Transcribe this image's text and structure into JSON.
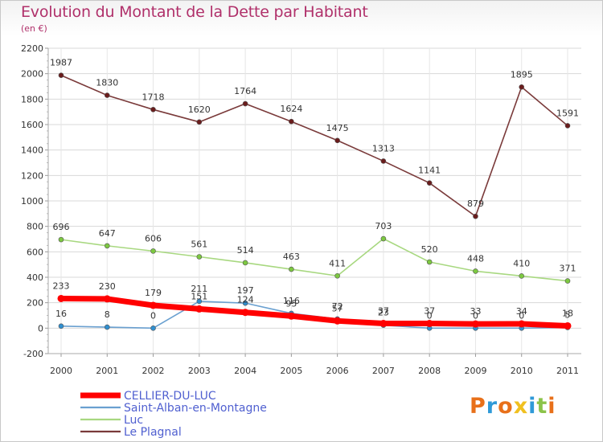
{
  "header": {
    "title": "Evolution du Montant de la Dette par Habitant",
    "subtitle": "(en €)"
  },
  "logo": {
    "text": "Proxiti",
    "colors": [
      "#e8701a",
      "#2f9ad8",
      "#e8701a",
      "#f0c020",
      "#2f9ad8",
      "#8bc34a",
      "#e8701a"
    ]
  },
  "chart_data": {
    "type": "line",
    "x": [
      "2000",
      "2001",
      "2002",
      "2003",
      "2004",
      "2005",
      "2006",
      "2007",
      "2008",
      "2009",
      "2010",
      "2011"
    ],
    "ylim": [
      -200,
      2200
    ],
    "yticks": [
      "-200",
      "0",
      "200",
      "400",
      "600",
      "800",
      "1000",
      "1200",
      "1400",
      "1600",
      "1800",
      "2000",
      "2200"
    ],
    "legend_position": "bottom-left",
    "series": [
      {
        "name": "CELLIER-DU-LUC",
        "color": "#ff0000",
        "marker": "#ff0000",
        "values": [
          233,
          230,
          179,
          151,
          124,
          95,
          57,
          37,
          37,
          33,
          34,
          18
        ],
        "labels": [
          "233",
          "230",
          "179",
          "151",
          "124",
          "95",
          "57",
          "37",
          "37",
          "33",
          "34",
          "18"
        ]
      },
      {
        "name": "Saint-Alban-en-Montagne",
        "color": "#6aa0d0",
        "marker": "#2f8fd0",
        "values": [
          16,
          8,
          0,
          211,
          197,
          116,
          72,
          23,
          0,
          0,
          0,
          5
        ],
        "labels": [
          "16",
          "8",
          "0",
          "211",
          "197",
          "116",
          "72",
          "23",
          "0",
          "0",
          "0",
          "5"
        ]
      },
      {
        "name": "Luc",
        "color": "#a8d880",
        "marker": "#7cc840",
        "values": [
          696,
          647,
          606,
          561,
          514,
          463,
          411,
          703,
          520,
          448,
          410,
          371
        ],
        "labels": [
          "696",
          "647",
          "606",
          "561",
          "514",
          "463",
          "411",
          "703",
          "520",
          "448",
          "410",
          "371"
        ]
      },
      {
        "name": "Le Plagnal",
        "color": "#7a3a3a",
        "marker": "#6a1c1c",
        "values": [
          1987,
          1830,
          1718,
          1620,
          1764,
          1624,
          1475,
          1313,
          1141,
          879,
          1895,
          1591
        ],
        "labels": [
          "1987",
          "1830",
          "1718",
          "1620",
          "1764",
          "1624",
          "1475",
          "1313",
          "1141",
          "879",
          "1895",
          "1591"
        ]
      }
    ]
  }
}
